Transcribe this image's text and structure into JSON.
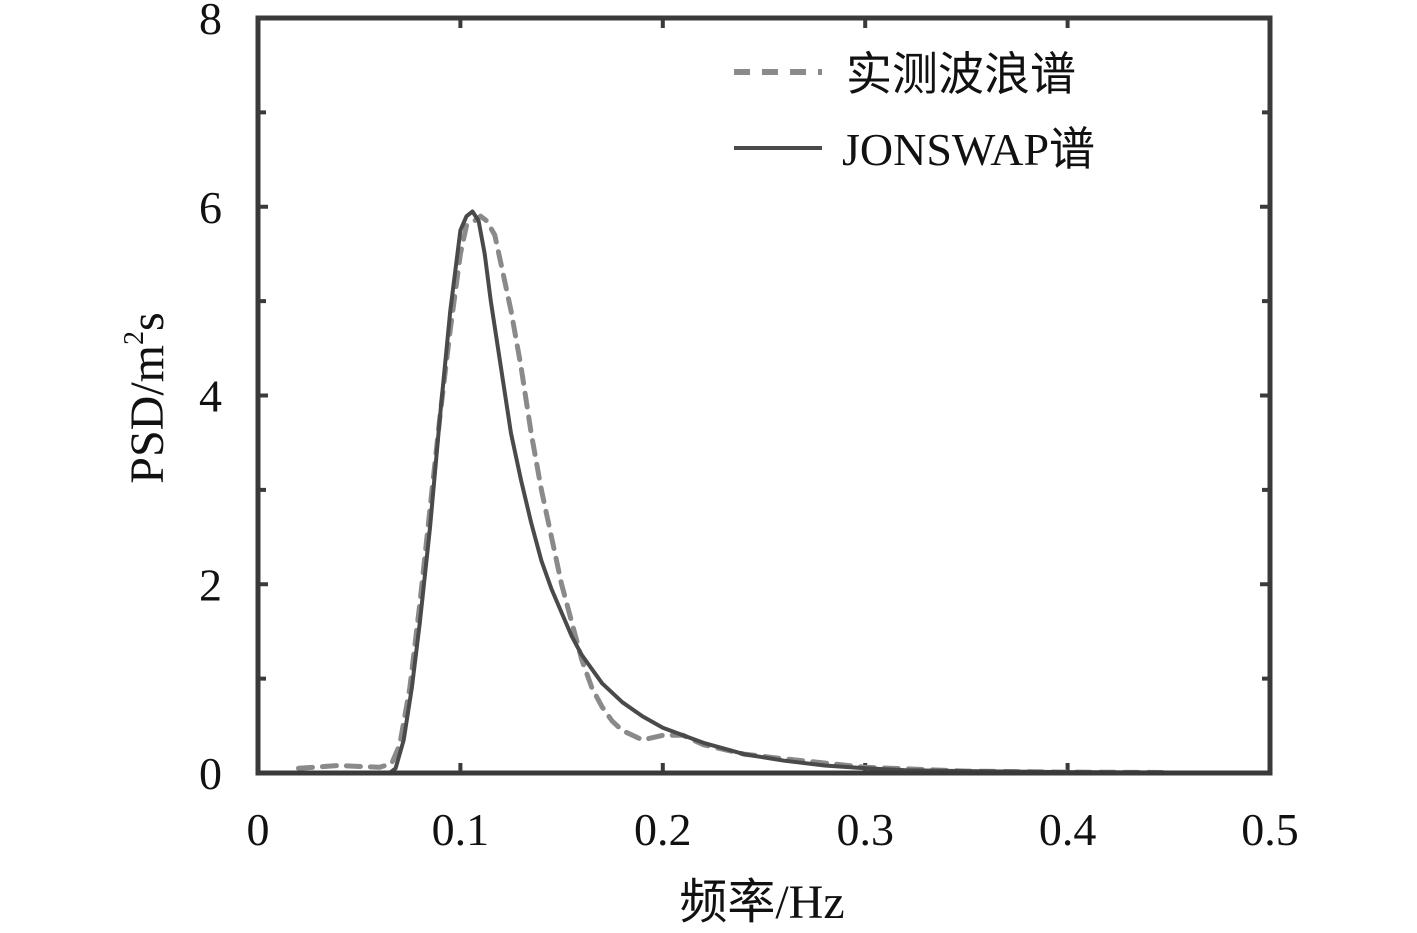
{
  "chart_data": {
    "type": "line",
    "xlabel": "频率/Hz",
    "ylabel_main": "PSD/m",
    "ylabel_sup": "2",
    "ylabel_tail": "s",
    "xlim": [
      0,
      0.5
    ],
    "ylim": [
      0,
      8
    ],
    "xticks": [
      "0",
      "0.1",
      "0.2",
      "0.3",
      "0.4",
      "0.5"
    ],
    "xtick_values": [
      0,
      0.1,
      0.2,
      0.3,
      0.4,
      0.5
    ],
    "yticks": [
      "0",
      "2",
      "4",
      "6",
      "8"
    ],
    "ytick_values": [
      0,
      2,
      4,
      6,
      8
    ],
    "y_minor_ticks": [
      1,
      3,
      5,
      7
    ],
    "grid": false,
    "legend_position": "top-right",
    "series": [
      {
        "name": "实测波浪谱",
        "style": "dashed",
        "color": "#8a8a8a",
        "x": [
          0.02,
          0.04,
          0.06,
          0.066,
          0.07,
          0.075,
          0.08,
          0.085,
          0.09,
          0.095,
          0.1,
          0.103,
          0.107,
          0.11,
          0.113,
          0.117,
          0.12,
          0.125,
          0.13,
          0.135,
          0.14,
          0.145,
          0.15,
          0.155,
          0.16,
          0.165,
          0.17,
          0.175,
          0.18,
          0.19,
          0.2,
          0.21,
          0.22,
          0.24,
          0.26,
          0.3,
          0.35,
          0.4,
          0.45
        ],
        "y": [
          0.05,
          0.08,
          0.06,
          0.1,
          0.3,
          0.9,
          1.8,
          2.8,
          3.8,
          4.7,
          5.5,
          5.8,
          5.85,
          5.9,
          5.85,
          5.7,
          5.4,
          4.9,
          4.3,
          3.6,
          3.0,
          2.5,
          2.0,
          1.6,
          1.2,
          0.9,
          0.7,
          0.55,
          0.45,
          0.35,
          0.4,
          0.4,
          0.3,
          0.2,
          0.15,
          0.06,
          0.02,
          0.01,
          0.005
        ]
      },
      {
        "name": "JONSWAP谱",
        "style": "solid",
        "color": "#4a4a4a",
        "x": [
          0.065,
          0.068,
          0.072,
          0.076,
          0.08,
          0.085,
          0.09,
          0.095,
          0.1,
          0.103,
          0.106,
          0.109,
          0.112,
          0.115,
          0.12,
          0.125,
          0.13,
          0.135,
          0.14,
          0.145,
          0.15,
          0.155,
          0.16,
          0.17,
          0.18,
          0.19,
          0.2,
          0.21,
          0.22,
          0.24,
          0.26,
          0.28,
          0.3,
          0.32,
          0.35,
          0.4,
          0.45
        ],
        "y": [
          0.0,
          0.05,
          0.35,
          0.9,
          1.6,
          2.6,
          3.8,
          4.9,
          5.75,
          5.9,
          5.95,
          5.85,
          5.5,
          5.0,
          4.3,
          3.6,
          3.1,
          2.65,
          2.25,
          1.95,
          1.7,
          1.45,
          1.25,
          0.95,
          0.75,
          0.6,
          0.48,
          0.4,
          0.32,
          0.2,
          0.13,
          0.08,
          0.05,
          0.03,
          0.02,
          0.01,
          0.005
        ]
      }
    ]
  }
}
